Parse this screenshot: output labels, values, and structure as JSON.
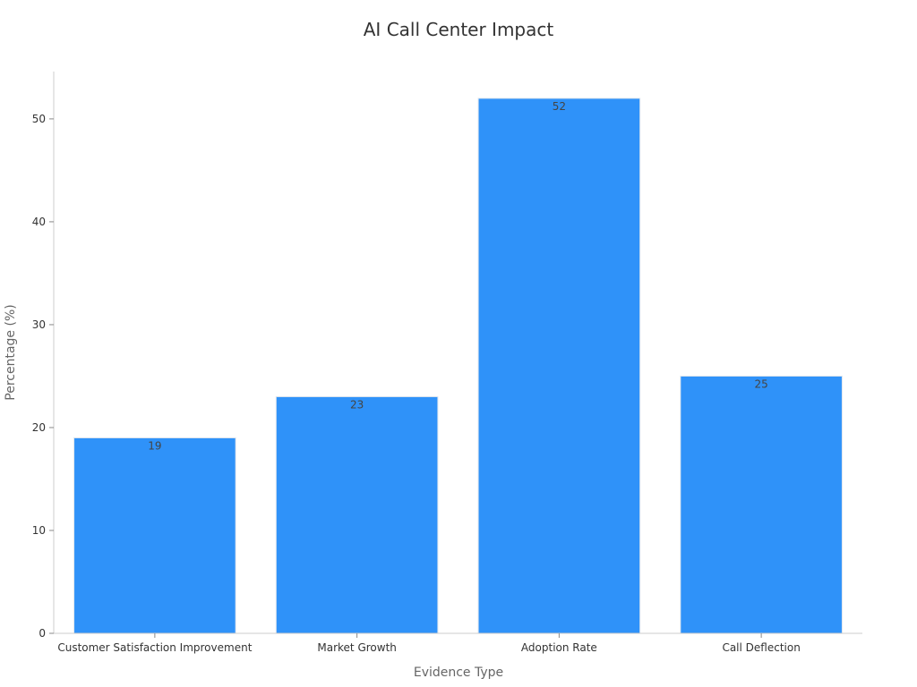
{
  "chart_data": {
    "type": "bar",
    "title": "AI Call Center Impact",
    "xlabel": "Evidence Type",
    "ylabel": "Percentage (%)",
    "categories": [
      "Customer Satisfaction Improvement",
      "Market Growth",
      "Adoption Rate",
      "Call Deflection"
    ],
    "values": [
      19,
      23,
      52,
      25
    ],
    "ylim": [
      0,
      54.6
    ],
    "yticks": [
      0,
      10,
      20,
      30,
      40,
      50
    ],
    "grid": false,
    "legend": "none",
    "colors": {
      "bar": "#2f92f9",
      "bar_edge": "#dfe6ee"
    }
  }
}
